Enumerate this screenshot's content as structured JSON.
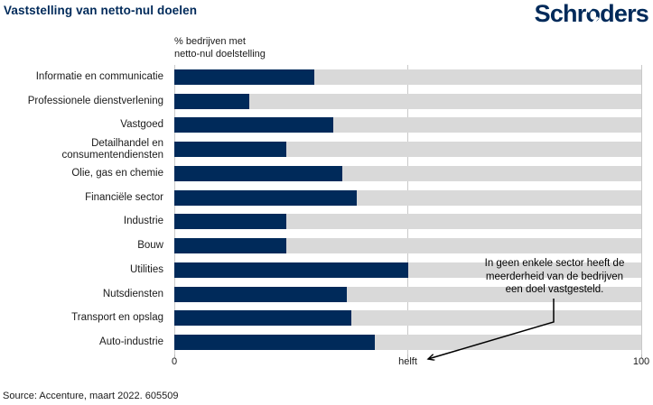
{
  "header": {
    "title": "Vaststelling van netto-nul doelen",
    "logo_part1": "Schr",
    "logo_o": "o",
    "logo_part2": "ders"
  },
  "chart_data": {
    "type": "bar",
    "orientation": "horizontal",
    "title": "Vaststelling van netto-nul doelen",
    "axis_caption_line1": "% bedrijven met",
    "axis_caption_line2": "netto-nul doelstelling",
    "categories": [
      "Informatie en communicatie",
      "Professionele dienstverlening",
      "Vastgoed",
      "Detailhandel en consumentendiensten",
      "Olie, gas en chemie",
      "Financiële sector",
      "Industrie",
      "Bouw",
      "Utilities",
      "Nutsdiensten",
      "Transport en opslag",
      "Auto-industrie"
    ],
    "values": [
      30,
      16,
      34,
      24,
      36,
      39,
      24,
      24,
      50,
      37,
      38,
      43
    ],
    "xlim": [
      0,
      100
    ],
    "x_ticks": [
      "0",
      "helft",
      "100"
    ],
    "x_tick_positions": [
      0,
      50,
      100
    ],
    "bar_color": "#002a5a",
    "track_color": "#d9d9d9",
    "gridline_color": "#c9c9c9",
    "legend": "none",
    "annotation_lines": [
      "In geen enkele sector heeft de",
      "meerderheid van de bedrijven",
      "een doel vastgesteld."
    ]
  },
  "footer": {
    "source": "Source: Accenture, maart 2022. 605509"
  }
}
